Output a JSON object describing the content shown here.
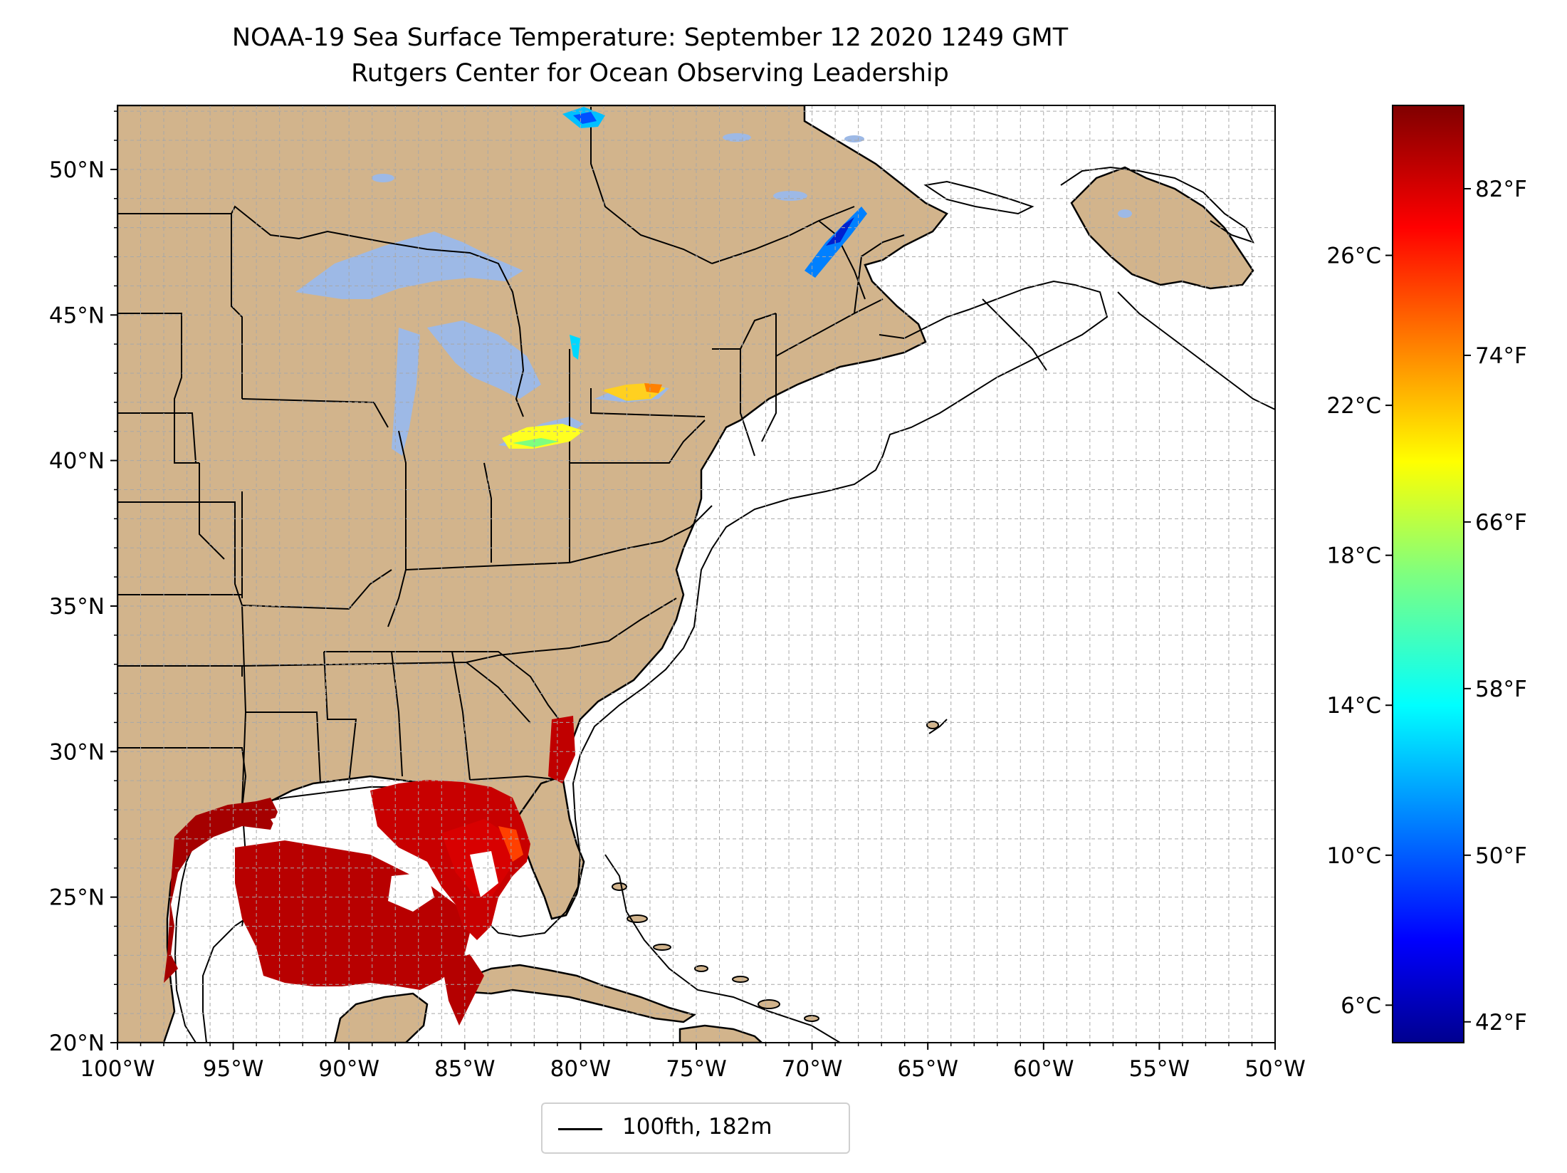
{
  "title": "NOAA-19 Sea Surface Temperature: September 12 2020 1249 GMT",
  "subtitle": "Rutgers Center for Ocean Observing Leadership",
  "map": {
    "extent": {
      "lon_min": -100,
      "lon_max": -50,
      "lat_min": 20,
      "lat_max": 52.2
    },
    "lon_ticks": [
      {
        "lon": -100,
        "label": "100°W"
      },
      {
        "lon": -95,
        "label": "95°W"
      },
      {
        "lon": -90,
        "label": "90°W"
      },
      {
        "lon": -85,
        "label": "85°W"
      },
      {
        "lon": -80,
        "label": "80°W"
      },
      {
        "lon": -75,
        "label": "75°W"
      },
      {
        "lon": -70,
        "label": "70°W"
      },
      {
        "lon": -65,
        "label": "65°W"
      },
      {
        "lon": -60,
        "label": "60°W"
      },
      {
        "lon": -55,
        "label": "55°W"
      },
      {
        "lon": -50,
        "label": "50°W"
      }
    ],
    "lat_ticks": [
      {
        "lat": 20,
        "label": "20°N"
      },
      {
        "lat": 25,
        "label": "25°N"
      },
      {
        "lat": 30,
        "label": "30°N"
      },
      {
        "lat": 35,
        "label": "35°N"
      },
      {
        "lat": 40,
        "label": "40°N"
      },
      {
        "lat": 45,
        "label": "45°N"
      },
      {
        "lat": 50,
        "label": "50°N"
      }
    ],
    "grid": true,
    "land_color": "#d2b48c",
    "lake_color": "#9db9e6",
    "ocean_color": "#ffffff",
    "legend": {
      "label": "100fth, 182m",
      "placement": "bottom-center"
    }
  },
  "colorbar": {
    "colormap": "jet",
    "celsius_range": [
      5.0,
      30.0
    ],
    "celsius_ticks": [
      {
        "value": 6,
        "label": "6°C"
      },
      {
        "value": 10,
        "label": "10°C"
      },
      {
        "value": 14,
        "label": "14°C"
      },
      {
        "value": 18,
        "label": "18°C"
      },
      {
        "value": 22,
        "label": "22°C"
      },
      {
        "value": 26,
        "label": "26°C"
      }
    ],
    "fahrenheit_ticks": [
      {
        "value": 42,
        "label": "42°F"
      },
      {
        "value": 50,
        "label": "50°F"
      },
      {
        "value": 58,
        "label": "58°F"
      },
      {
        "value": 66,
        "label": "66°F"
      },
      {
        "value": 74,
        "label": "74°F"
      },
      {
        "value": 82,
        "label": "82°F"
      }
    ]
  }
}
